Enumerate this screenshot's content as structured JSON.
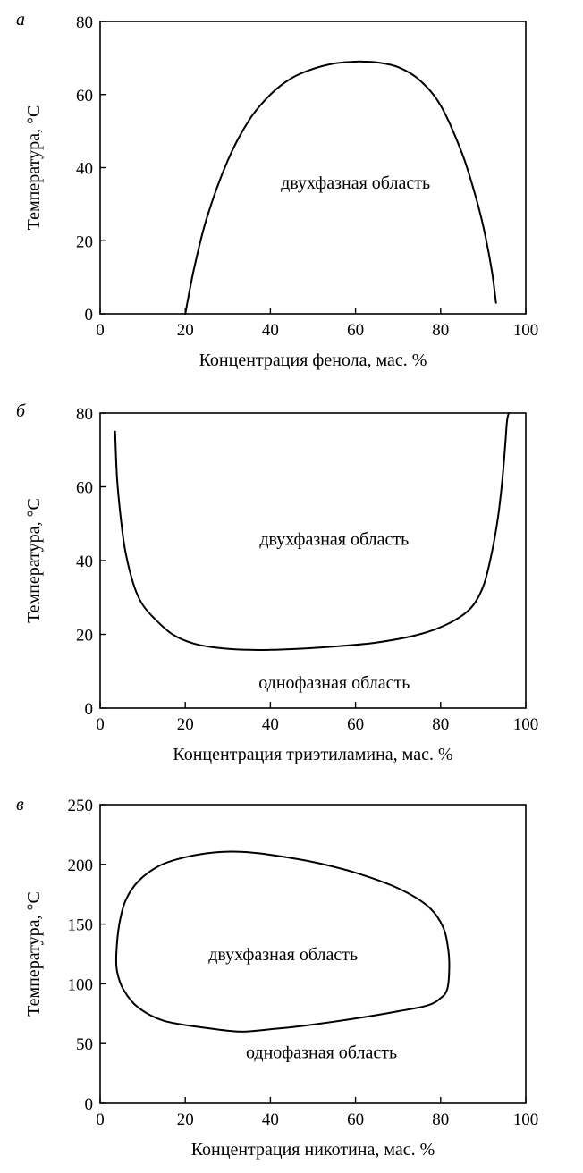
{
  "chart_data": [
    {
      "id": "a",
      "type": "line",
      "panel_label": "а",
      "xlabel": "Концентрация фенола, мас. %",
      "ylabel": "Температура, °C",
      "xlim": [
        0,
        100
      ],
      "ylim": [
        0,
        80
      ],
      "xticks": [
        0,
        20,
        40,
        60,
        80,
        100
      ],
      "yticks": [
        0,
        20,
        40,
        60,
        80
      ],
      "closed": false,
      "series": [
        {
          "x": [
            20,
            22,
            25,
            30,
            35,
            40,
            45,
            50,
            55,
            60,
            62,
            65,
            70,
            75,
            80,
            85,
            88,
            90,
            92,
            93
          ],
          "y": [
            0,
            12,
            26,
            42,
            53,
            60,
            64.5,
            67,
            68.5,
            69,
            69,
            68.8,
            67.5,
            64,
            57,
            44,
            33,
            24,
            12,
            3
          ]
        }
      ],
      "annotations": [
        {
          "text": "двухфазная область",
          "x": 60,
          "y": 36
        }
      ]
    },
    {
      "id": "b",
      "type": "line",
      "panel_label": "б",
      "xlabel": "Концентрация триэтиламина, мас. %",
      "ylabel": "Температура, °C",
      "xlim": [
        0,
        100
      ],
      "ylim": [
        0,
        80
      ],
      "xticks": [
        0,
        20,
        40,
        60,
        80,
        100
      ],
      "yticks": [
        0,
        20,
        40,
        60,
        80
      ],
      "closed": false,
      "series": [
        {
          "x": [
            3.5,
            4,
            5,
            6,
            8,
            10,
            13,
            17,
            22,
            28,
            35,
            40,
            45,
            55,
            65,
            75,
            82,
            87,
            90,
            92,
            93.5,
            94.5,
            95.2,
            95.6,
            96
          ],
          "y": [
            75,
            62,
            50,
            42,
            33,
            28,
            24,
            20,
            17.5,
            16.3,
            15.8,
            15.8,
            16,
            16.7,
            17.8,
            20,
            23,
            27,
            33,
            42,
            52,
            62,
            72,
            78,
            80
          ]
        }
      ],
      "annotations": [
        {
          "text": "двухфазная область",
          "x": 55,
          "y": 46
        },
        {
          "text": "однофазная область",
          "x": 55,
          "y": 7
        }
      ]
    },
    {
      "id": "c",
      "type": "line",
      "panel_label": "в",
      "xlabel": "Концентрация никотина, мас. %",
      "ylabel": "Температура, °C",
      "xlim": [
        0,
        100
      ],
      "ylim": [
        0,
        250
      ],
      "xticks": [
        0,
        20,
        40,
        60,
        80,
        100
      ],
      "yticks": [
        0,
        50,
        100,
        150,
        200,
        250
      ],
      "closed": true,
      "series": [
        {
          "x": [
            3.8,
            4.5,
            6,
            9,
            14,
            20,
            27,
            33,
            40,
            50,
            60,
            70,
            77,
            80.5,
            81.8,
            82,
            81.5,
            80,
            77,
            70,
            60,
            48,
            40,
            33,
            25,
            15,
            9,
            5.5,
            4,
            3.8
          ],
          "y": [
            125,
            150,
            170,
            186,
            199,
            206,
            210,
            210.5,
            208,
            202,
            193,
            180,
            165,
            148,
            128,
            110,
            95,
            88,
            82,
            77,
            71,
            65,
            62,
            60,
            63,
            69,
            80,
            95,
            110,
            125
          ]
        }
      ],
      "annotations": [
        {
          "text": "двухфазная область",
          "x": 43,
          "y": 125
        },
        {
          "text": "однофазная область",
          "x": 52,
          "y": 43
        }
      ]
    }
  ]
}
